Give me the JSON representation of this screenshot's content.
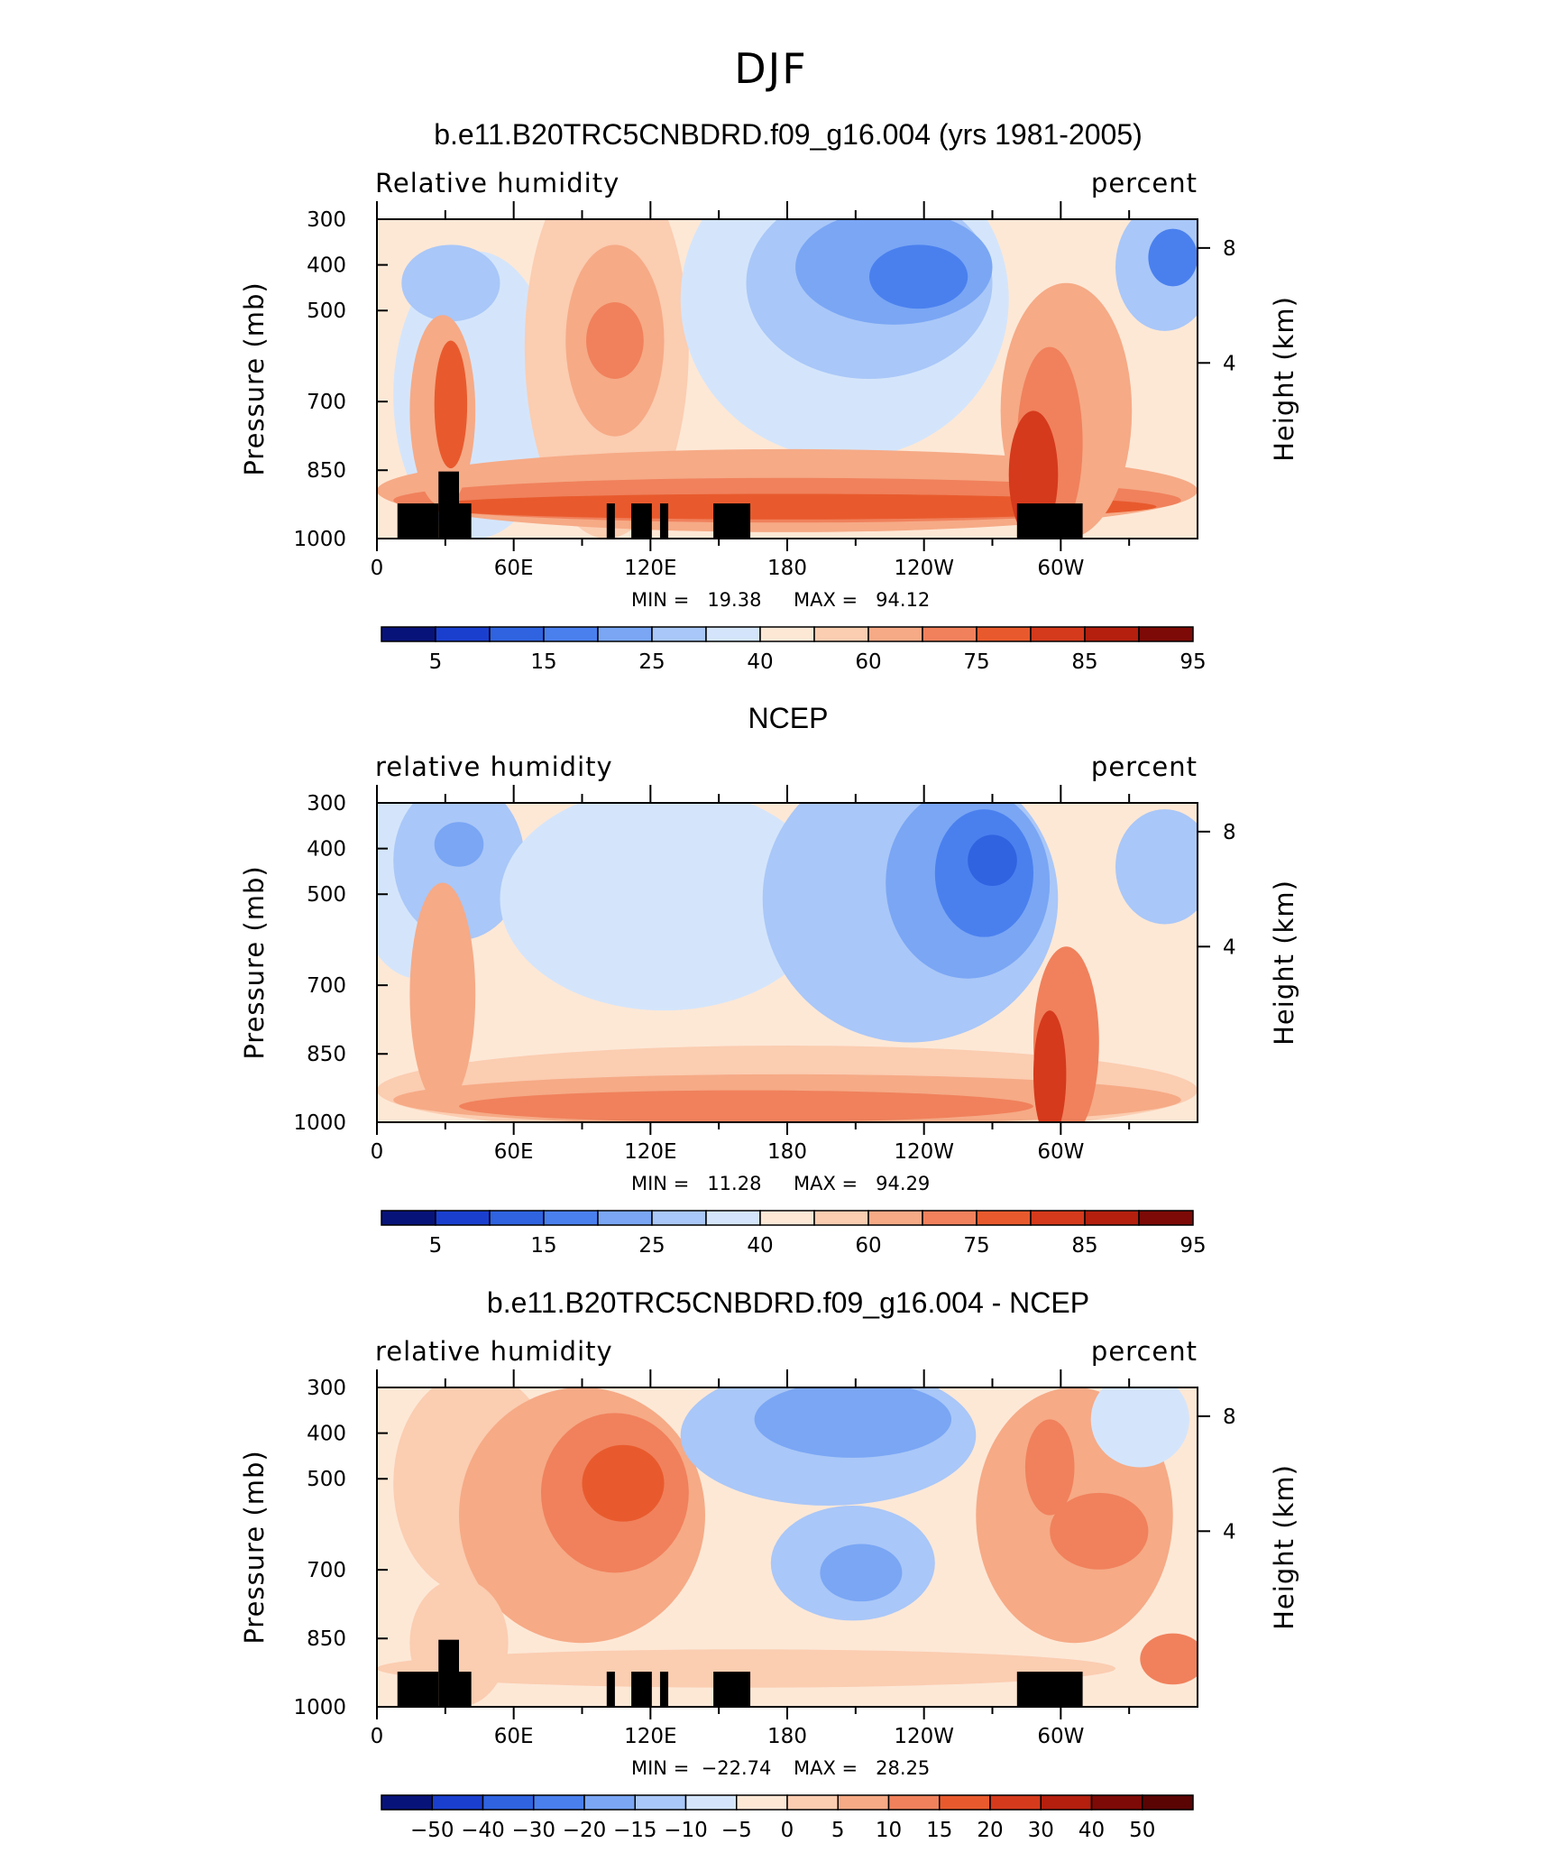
{
  "figure_title": "DJF",
  "chart_data": [
    {
      "type": "heatmap",
      "title": "b.e11.B20TRC5CNBDRD.f09_g16.004 (yrs 1981-2005)",
      "left_string": "Relative humidity",
      "right_string": "percent",
      "ylabel": "Pressure (mb)",
      "ylabel_right": "Height (km)",
      "x_ticks": [
        "0",
        "60E",
        "120E",
        "180",
        "120W",
        "60W"
      ],
      "y_ticks": [
        "300",
        "400",
        "500",
        "700",
        "850",
        "1000"
      ],
      "y_ticks_right": [
        "8",
        "4"
      ],
      "min_text": "MIN =   19.38",
      "max_text": "MAX =   94.12",
      "min": 19.38,
      "max": 94.12,
      "colorbar_labels": [
        "5",
        "15",
        "25",
        "40",
        "60",
        "75",
        "85",
        "95"
      ],
      "colorbar_colors": [
        "#08137a",
        "#1a3fcf",
        "#2f63e0",
        "#4a80ee",
        "#7aa6f4",
        "#a9c7f8",
        "#d4e5fb",
        "#fde8d6",
        "#fbcdb1",
        "#f6aa86",
        "#f0815c",
        "#e85a2d",
        "#d53a1c",
        "#b41f0e",
        "#7d0a06"
      ]
    },
    {
      "type": "heatmap",
      "title": "NCEP",
      "left_string": "relative humidity",
      "right_string": "percent",
      "ylabel": "Pressure (mb)",
      "ylabel_right": "Height (km)",
      "x_ticks": [
        "0",
        "60E",
        "120E",
        "180",
        "120W",
        "60W"
      ],
      "y_ticks": [
        "300",
        "400",
        "500",
        "700",
        "850",
        "1000"
      ],
      "y_ticks_right": [
        "8",
        "4"
      ],
      "min_text": "MIN =   11.28",
      "max_text": "MAX =   94.29",
      "min": 11.28,
      "max": 94.29,
      "colorbar_labels": [
        "5",
        "15",
        "25",
        "40",
        "60",
        "75",
        "85",
        "95"
      ],
      "colorbar_colors": [
        "#08137a",
        "#1a3fcf",
        "#2f63e0",
        "#4a80ee",
        "#7aa6f4",
        "#a9c7f8",
        "#d4e5fb",
        "#fde8d6",
        "#fbcdb1",
        "#f6aa86",
        "#f0815c",
        "#e85a2d",
        "#d53a1c",
        "#b41f0e",
        "#7d0a06"
      ]
    },
    {
      "type": "heatmap",
      "title": "b.e11.B20TRC5CNBDRD.f09_g16.004 - NCEP",
      "left_string": "relative humidity",
      "right_string": "percent",
      "ylabel": "Pressure (mb)",
      "ylabel_right": "Height (km)",
      "x_ticks": [
        "0",
        "60E",
        "120E",
        "180",
        "120W",
        "60W"
      ],
      "y_ticks": [
        "300",
        "400",
        "500",
        "700",
        "850",
        "1000"
      ],
      "y_ticks_right": [
        "8",
        "4"
      ],
      "min_text": "MIN =  −22.74",
      "max_text": "MAX =   28.25",
      "min": -22.74,
      "max": 28.25,
      "colorbar_labels": [
        "−50",
        "−40",
        "−30",
        "−20",
        "−15",
        "−10",
        "−5",
        "0",
        "5",
        "10",
        "15",
        "20",
        "30",
        "40",
        "50"
      ],
      "colorbar_colors": [
        "#08137a",
        "#1a3fcf",
        "#2f63e0",
        "#4a80ee",
        "#7aa6f4",
        "#a9c7f8",
        "#d4e5fb",
        "#fde8d6",
        "#fbcdb1",
        "#f6aa86",
        "#f0815c",
        "#e85a2d",
        "#d53a1c",
        "#b41f0e",
        "#7d0a06",
        "#5a0404"
      ]
    }
  ]
}
